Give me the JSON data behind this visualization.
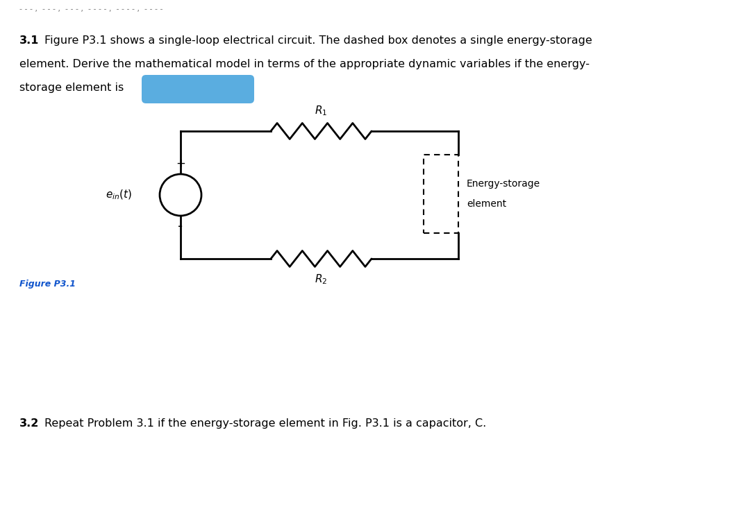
{
  "bg_color": "#ffffff",
  "header_dashes": "- - - ,  - - - ,  - - - ,  - - - - ,  - - - - ,  - - - -",
  "text_31_bold": "3.1",
  "text_31_line1": "Figure P3.1 shows a single-loop electrical circuit. The dashed box denotes a single energy-storage",
  "text_31_line2": "element. Derive the mathematical model in terms of the appropriate dynamic variables if the energy-",
  "text_31_line3": "storage element is",
  "blue_highlight_color": "#5aade0",
  "figure_label": "Figure P3.1",
  "figure_label_color": "#1155cc",
  "text_32_bold": "3.2",
  "text_32_normal": "Repeat Problem 3.1 if the energy-storage element in Fig. P3.1 is a capacitor, C.",
  "energy_storage_label_line1": "Energy-storage",
  "energy_storage_label_line2": "element",
  "R1_label": "$R_1$",
  "R2_label": "$R_2$",
  "ein_label": "$e_{in}(t)$",
  "plus_label": "+",
  "minus_label": "-",
  "circuit_line_color": "#000000",
  "circuit_lw": 2.0,
  "font_size_main": 11.5,
  "font_size_circuit": 11
}
